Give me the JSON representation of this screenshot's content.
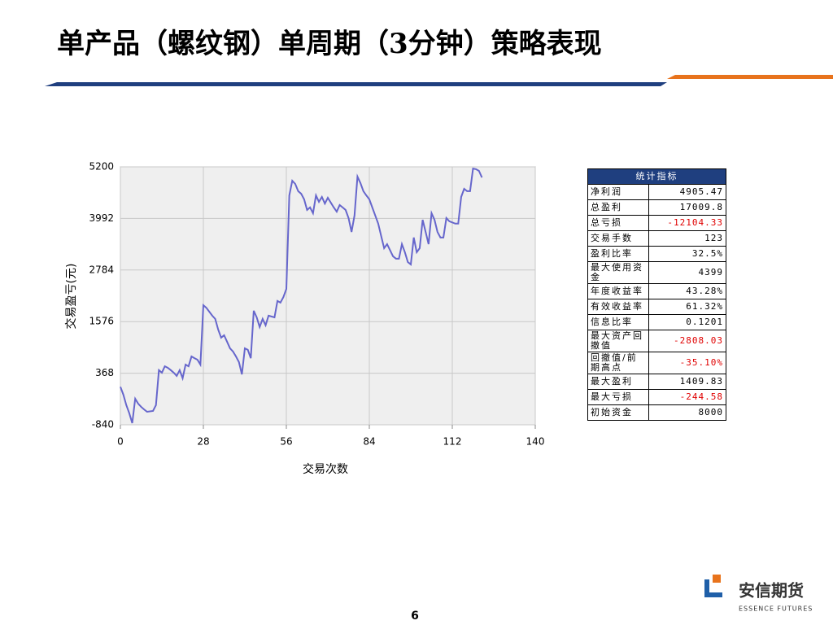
{
  "title": "单产品（螺纹钢）单周期（3分钟）策略表现",
  "chart_data": {
    "type": "line",
    "x_label": "交易次数",
    "y_label": "交易盈亏(元)",
    "x": [
      0,
      1,
      2,
      3,
      4,
      5,
      6,
      7,
      8,
      9,
      11,
      12,
      13,
      14,
      15,
      16,
      17,
      18,
      19,
      20,
      21,
      22,
      23,
      24,
      25,
      26,
      27,
      28,
      29,
      31,
      32,
      33,
      34,
      35,
      36,
      37,
      38,
      39,
      40,
      41,
      42,
      43,
      44,
      45,
      46,
      47,
      48,
      49,
      50,
      52,
      53,
      54,
      55,
      56,
      57,
      58,
      59,
      60,
      61,
      62,
      63,
      64,
      65,
      66,
      67,
      68,
      69,
      70,
      72,
      73,
      74,
      75,
      76,
      77,
      78,
      79,
      80,
      81,
      82,
      83,
      84,
      85,
      86,
      87,
      88,
      89,
      90,
      92,
      93,
      94,
      95,
      96,
      97,
      98,
      99,
      100,
      101,
      102,
      103,
      104,
      105,
      106,
      107,
      108,
      109,
      110,
      111,
      113,
      114,
      115,
      116,
      117,
      118,
      119,
      120,
      121,
      122
    ],
    "series": [
      {
        "color": "#6666cc",
        "values": [
          50,
          -135,
          -380,
          -570,
          -800,
          -230,
          -345,
          -420,
          -480,
          -535,
          -515,
          -380,
          440,
          380,
          530,
          495,
          440,
          380,
          305,
          440,
          250,
          570,
          530,
          760,
          720,
          685,
          570,
          1960,
          1900,
          1715,
          1640,
          1390,
          1200,
          1257,
          1105,
          950,
          875,
          760,
          630,
          340,
          950,
          915,
          720,
          1830,
          1675,
          1450,
          1640,
          1490,
          1715,
          1675,
          2060,
          2020,
          2150,
          2340,
          4530,
          4875,
          4800,
          4630,
          4570,
          4440,
          4190,
          4250,
          4115,
          4530,
          4380,
          4495,
          4340,
          4475,
          4250,
          4150,
          4305,
          4250,
          4190,
          4000,
          3675,
          4060,
          4970,
          4820,
          4630,
          4530,
          4440,
          4250,
          4060,
          3870,
          3580,
          3295,
          3390,
          3105,
          3050,
          3050,
          3390,
          3200,
          2970,
          2915,
          3545,
          3200,
          3295,
          3960,
          3675,
          3390,
          4115,
          3960,
          3675,
          3545,
          3545,
          4000,
          3925,
          3870,
          3870,
          4495,
          4685,
          4630,
          4630,
          5160,
          5145,
          5105,
          4950
        ]
      }
    ],
    "xlim": [
      0,
      140
    ],
    "xticks": [
      0,
      28,
      56,
      84,
      112,
      140
    ],
    "ylim": [
      -840,
      5200
    ],
    "yticks": [
      -840,
      368,
      1576,
      2784,
      3992,
      5200
    ],
    "grid": true
  },
  "table": {
    "header": "统计指标",
    "rows": [
      [
        "净利润",
        "4905.47"
      ],
      [
        "总盈利",
        "17009.8"
      ],
      [
        "总亏损",
        "-12104.33"
      ],
      [
        "交易手数",
        "123"
      ],
      [
        "盈利比率",
        "32.5%"
      ],
      [
        "最大使用资金",
        "4399"
      ],
      [
        "年度收益率",
        "43.28%"
      ],
      [
        "有效收益率",
        "61.32%"
      ],
      [
        "信息比率",
        "0.1201"
      ],
      [
        "最大资产回撤值",
        "-2808.03"
      ],
      [
        "回撤值/前期高点",
        "-35.10%"
      ],
      [
        "最大盈利",
        "1409.83"
      ],
      [
        "最大亏损",
        "-244.58"
      ],
      [
        "初始资金",
        "8000"
      ]
    ]
  },
  "logo": {
    "name": "安信期货",
    "subtitle": "ESSENCE FUTURES"
  },
  "page_number": "6"
}
